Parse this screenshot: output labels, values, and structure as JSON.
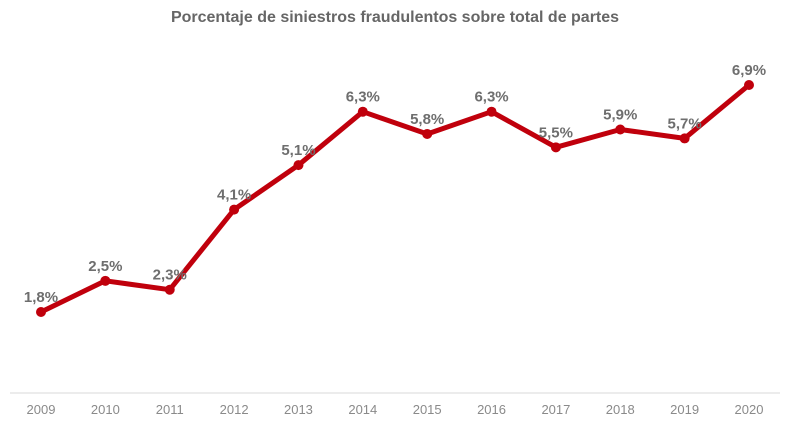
{
  "chart_data": {
    "type": "line",
    "title": "Porcentaje de siniestros fraudulentos sobre total de partes",
    "xlabel": "",
    "ylabel": "",
    "categories": [
      "2009",
      "2010",
      "2011",
      "2012",
      "2013",
      "2014",
      "2015",
      "2016",
      "2017",
      "2018",
      "2019",
      "2020"
    ],
    "series": [
      {
        "name": "Porcentaje de siniestros fraudulentos",
        "values": [
          1.8,
          2.5,
          2.3,
          4.1,
          5.1,
          6.3,
          5.8,
          6.3,
          5.5,
          5.9,
          5.7,
          6.9
        ],
        "data_labels": [
          "1,8%",
          "2,5%",
          "2,3%",
          "4,1%",
          "5,1%",
          "6,3%",
          "5,8%",
          "6,3%",
          "5,5%",
          "5,9%",
          "5,7%",
          "6,9%"
        ]
      }
    ],
    "ylim": [
      0,
      8
    ],
    "grid": false,
    "legend": "none",
    "colors": {
      "line": "#c0000c",
      "title": "#666666",
      "data_label": "#6e6e6e",
      "tick_label": "#8a8a8a",
      "axis": "#d9d9d9"
    }
  }
}
